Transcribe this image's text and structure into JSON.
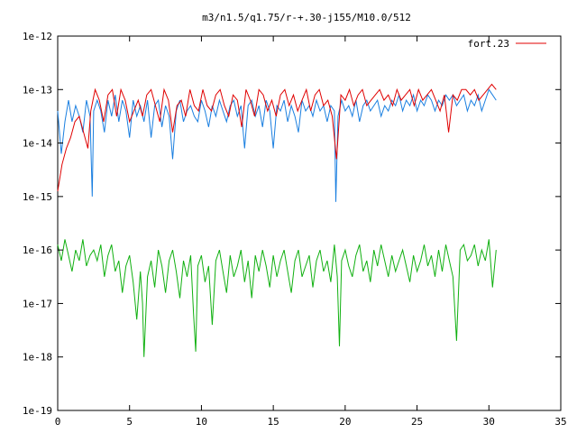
{
  "chart_data": {
    "type": "line",
    "title": "m3/n1.5/q1.75/r-+.30-j155/M10.0/512",
    "xlabel": "",
    "ylabel": "",
    "xlim": [
      0,
      35
    ],
    "ylim": [
      1e-19,
      1e-12
    ],
    "yscale": "log",
    "x_ticks": [
      0,
      5,
      10,
      15,
      20,
      25,
      30,
      35
    ],
    "x_tick_labels": [
      "0",
      "5",
      "10",
      "15",
      "20",
      "25",
      "30",
      "35"
    ],
    "y_ticks_exp": [
      -12,
      -13,
      -14,
      -15,
      -16,
      -17,
      -18,
      -19
    ],
    "y_tick_labels": [
      "1e-12",
      "1e-13",
      "1e-14",
      "1e-15",
      "1e-16",
      "1e-17",
      "1e-18",
      "1e-19"
    ],
    "grid": false,
    "legend_position": "top-right",
    "series": [
      {
        "name": "fort.23",
        "color": "#e00000",
        "x": [
          0.0,
          0.3,
          0.6,
          0.9,
          1.2,
          1.5,
          1.8,
          2.1,
          2.3,
          2.6,
          2.9,
          3.2,
          3.5,
          3.8,
          4.1,
          4.4,
          4.7,
          5.0,
          5.3,
          5.6,
          5.9,
          6.2,
          6.5,
          6.8,
          7.1,
          7.4,
          7.7,
          8.0,
          8.3,
          8.6,
          8.9,
          9.2,
          9.5,
          9.8,
          10.1,
          10.4,
          10.7,
          11.0,
          11.3,
          11.6,
          11.9,
          12.2,
          12.5,
          12.8,
          13.1,
          13.4,
          13.7,
          14.0,
          14.3,
          14.6,
          14.9,
          15.2,
          15.5,
          15.8,
          16.1,
          16.4,
          16.7,
          17.0,
          17.3,
          17.6,
          17.9,
          18.2,
          18.5,
          18.8,
          19.1,
          19.4,
          19.7,
          20.0,
          20.3,
          20.6,
          20.9,
          21.2,
          21.5,
          21.8,
          22.1,
          22.4,
          22.7,
          23.0,
          23.3,
          23.6,
          23.9,
          24.2,
          24.5,
          24.8,
          25.1,
          25.4,
          25.7,
          26.0,
          26.3,
          26.6,
          26.9,
          27.2,
          27.5,
          27.8,
          28.1,
          28.4,
          28.7,
          29.0,
          29.3,
          29.6,
          29.9,
          30.2,
          30.5
        ],
        "y_exp": [
          -14.9,
          -14.4,
          -14.1,
          -13.9,
          -13.6,
          -13.5,
          -13.8,
          -14.1,
          -13.4,
          -13.0,
          -13.2,
          -13.6,
          -13.1,
          -13.0,
          -13.5,
          -13.0,
          -13.2,
          -13.6,
          -13.4,
          -13.2,
          -13.5,
          -13.1,
          -13.0,
          -13.3,
          -13.6,
          -13.0,
          -13.2,
          -13.8,
          -13.3,
          -13.2,
          -13.5,
          -13.0,
          -13.3,
          -13.4,
          -13.0,
          -13.3,
          -13.4,
          -13.1,
          -13.0,
          -13.3,
          -13.5,
          -13.1,
          -13.2,
          -13.7,
          -13.0,
          -13.2,
          -13.5,
          -13.0,
          -13.1,
          -13.4,
          -13.2,
          -13.5,
          -13.1,
          -13.0,
          -13.3,
          -13.1,
          -13.4,
          -13.2,
          -13.0,
          -13.4,
          -13.1,
          -13.0,
          -13.3,
          -13.2,
          -13.5,
          -14.3,
          -13.1,
          -13.2,
          -13.0,
          -13.3,
          -13.1,
          -13.0,
          -13.3,
          -13.2,
          -13.1,
          -13.0,
          -13.2,
          -13.1,
          -13.3,
          -13.0,
          -13.2,
          -13.1,
          -13.0,
          -13.3,
          -13.0,
          -13.2,
          -13.1,
          -13.0,
          -13.2,
          -13.4,
          -13.1,
          -13.8,
          -13.1,
          -13.2,
          -13.0,
          -13.0,
          -13.1,
          -13.0,
          -13.2,
          -13.1,
          -13.0,
          -12.9,
          -13.0
        ]
      },
      {
        "name": "",
        "color": "#1a7fe0",
        "x": [
          0.0,
          0.25,
          0.5,
          0.75,
          1.0,
          1.25,
          1.5,
          1.75,
          2.0,
          2.25,
          2.4,
          2.5,
          2.75,
          3.0,
          3.25,
          3.5,
          3.75,
          4.0,
          4.25,
          4.5,
          4.75,
          5.0,
          5.25,
          5.5,
          5.75,
          6.0,
          6.25,
          6.5,
          6.75,
          7.0,
          7.25,
          7.5,
          7.75,
          8.0,
          8.25,
          8.5,
          8.75,
          9.0,
          9.25,
          9.5,
          9.75,
          10.0,
          10.25,
          10.5,
          10.75,
          11.0,
          11.25,
          11.5,
          11.75,
          12.0,
          12.25,
          12.5,
          12.75,
          13.0,
          13.25,
          13.5,
          13.75,
          14.0,
          14.25,
          14.5,
          14.75,
          15.0,
          15.25,
          15.5,
          15.75,
          16.0,
          16.25,
          16.5,
          16.75,
          17.0,
          17.25,
          17.5,
          17.75,
          18.0,
          18.25,
          18.5,
          18.75,
          19.0,
          19.25,
          19.35,
          19.5,
          19.75,
          20.0,
          20.25,
          20.5,
          20.75,
          21.0,
          21.25,
          21.5,
          21.75,
          22.0,
          22.25,
          22.5,
          22.75,
          23.0,
          23.25,
          23.5,
          23.75,
          24.0,
          24.25,
          24.5,
          24.75,
          25.0,
          25.25,
          25.5,
          25.75,
          26.0,
          26.25,
          26.5,
          26.75,
          27.0,
          27.25,
          27.5,
          27.75,
          28.0,
          28.25,
          28.5,
          28.75,
          29.0,
          29.25,
          29.5,
          29.75,
          30.0,
          30.25,
          30.5
        ],
        "y_exp": [
          -13.4,
          -14.2,
          -13.6,
          -13.2,
          -13.6,
          -13.3,
          -13.5,
          -13.8,
          -13.2,
          -13.5,
          -15.0,
          -13.4,
          -13.2,
          -13.4,
          -13.8,
          -13.2,
          -13.5,
          -13.1,
          -13.6,
          -13.2,
          -13.4,
          -13.9,
          -13.2,
          -13.5,
          -13.3,
          -13.6,
          -13.2,
          -13.9,
          -13.3,
          -13.2,
          -13.7,
          -13.3,
          -13.5,
          -14.3,
          -13.4,
          -13.2,
          -13.6,
          -13.4,
          -13.3,
          -13.5,
          -13.6,
          -13.2,
          -13.4,
          -13.7,
          -13.3,
          -13.5,
          -13.2,
          -13.4,
          -13.6,
          -13.3,
          -13.2,
          -13.5,
          -13.3,
          -14.1,
          -13.3,
          -13.2,
          -13.5,
          -13.3,
          -13.7,
          -13.2,
          -13.4,
          -14.1,
          -13.3,
          -13.4,
          -13.2,
          -13.6,
          -13.3,
          -13.5,
          -13.8,
          -13.2,
          -13.4,
          -13.3,
          -13.5,
          -13.2,
          -13.4,
          -13.3,
          -13.6,
          -13.3,
          -13.4,
          -15.1,
          -13.5,
          -13.2,
          -13.4,
          -13.3,
          -13.5,
          -13.2,
          -13.6,
          -13.3,
          -13.2,
          -13.4,
          -13.3,
          -13.2,
          -13.5,
          -13.3,
          -13.4,
          -13.2,
          -13.3,
          -13.1,
          -13.4,
          -13.2,
          -13.3,
          -13.1,
          -13.4,
          -13.2,
          -13.3,
          -13.1,
          -13.2,
          -13.4,
          -13.2,
          -13.3,
          -13.1,
          -13.2,
          -13.1,
          -13.3,
          -13.2,
          -13.1,
          -13.4,
          -13.2,
          -13.3,
          -13.1,
          -13.4,
          -13.2,
          -13.0,
          -13.1,
          -13.2
        ]
      },
      {
        "name": "",
        "color": "#10b010",
        "x": [
          0.0,
          0.25,
          0.5,
          0.75,
          1.0,
          1.25,
          1.5,
          1.75,
          2.0,
          2.25,
          2.5,
          2.75,
          3.0,
          3.25,
          3.5,
          3.75,
          4.0,
          4.25,
          4.5,
          4.75,
          5.0,
          5.25,
          5.5,
          5.75,
          5.9,
          6.0,
          6.25,
          6.5,
          6.75,
          7.0,
          7.25,
          7.5,
          7.75,
          8.0,
          8.25,
          8.5,
          8.75,
          9.0,
          9.25,
          9.45,
          9.6,
          9.75,
          10.0,
          10.25,
          10.5,
          10.75,
          11.0,
          11.25,
          11.5,
          11.75,
          12.0,
          12.25,
          12.5,
          12.75,
          13.0,
          13.25,
          13.5,
          13.75,
          14.0,
          14.25,
          14.5,
          14.75,
          15.0,
          15.25,
          15.5,
          15.75,
          16.0,
          16.25,
          16.5,
          16.75,
          17.0,
          17.25,
          17.5,
          17.75,
          18.0,
          18.25,
          18.5,
          18.75,
          19.0,
          19.25,
          19.45,
          19.6,
          19.75,
          20.0,
          20.25,
          20.5,
          20.75,
          21.0,
          21.25,
          21.5,
          21.75,
          22.0,
          22.25,
          22.5,
          22.75,
          23.0,
          23.25,
          23.5,
          23.75,
          24.0,
          24.25,
          24.5,
          24.75,
          25.0,
          25.25,
          25.5,
          25.75,
          26.0,
          26.25,
          26.5,
          26.75,
          27.0,
          27.25,
          27.5,
          27.75,
          28.0,
          28.25,
          28.5,
          28.75,
          29.0,
          29.25,
          29.5,
          29.75,
          30.0,
          30.25,
          30.5
        ],
        "y_exp": [
          -15.9,
          -16.2,
          -15.8,
          -16.1,
          -16.4,
          -16.0,
          -16.2,
          -15.8,
          -16.3,
          -16.1,
          -16.0,
          -16.2,
          -15.9,
          -16.5,
          -16.1,
          -15.9,
          -16.4,
          -16.2,
          -16.8,
          -16.3,
          -16.1,
          -16.6,
          -17.3,
          -16.4,
          -17.0,
          -18.0,
          -16.5,
          -16.2,
          -16.7,
          -16.0,
          -16.3,
          -16.8,
          -16.2,
          -16.0,
          -16.4,
          -16.9,
          -16.2,
          -16.5,
          -16.1,
          -17.2,
          -17.9,
          -16.3,
          -16.1,
          -16.6,
          -16.3,
          -17.4,
          -16.2,
          -16.0,
          -16.4,
          -16.8,
          -16.1,
          -16.5,
          -16.3,
          -16.0,
          -16.6,
          -16.2,
          -16.9,
          -16.1,
          -16.4,
          -16.0,
          -16.3,
          -16.7,
          -16.1,
          -16.5,
          -16.2,
          -16.0,
          -16.4,
          -16.8,
          -16.2,
          -16.0,
          -16.5,
          -16.3,
          -16.1,
          -16.7,
          -16.2,
          -16.0,
          -16.4,
          -16.2,
          -16.6,
          -15.9,
          -16.5,
          -17.8,
          -16.2,
          -16.0,
          -16.3,
          -16.5,
          -16.1,
          -15.9,
          -16.4,
          -16.2,
          -16.6,
          -16.0,
          -16.3,
          -15.9,
          -16.2,
          -16.5,
          -16.1,
          -16.4,
          -16.2,
          -16.0,
          -16.3,
          -16.6,
          -16.1,
          -16.4,
          -16.2,
          -15.9,
          -16.3,
          -16.1,
          -16.5,
          -16.0,
          -16.4,
          -15.9,
          -16.2,
          -16.5,
          -17.7,
          -16.0,
          -15.9,
          -16.2,
          -16.1,
          -15.9,
          -16.3,
          -16.0,
          -16.2,
          -15.8,
          -16.7,
          -16.0
        ]
      }
    ]
  }
}
